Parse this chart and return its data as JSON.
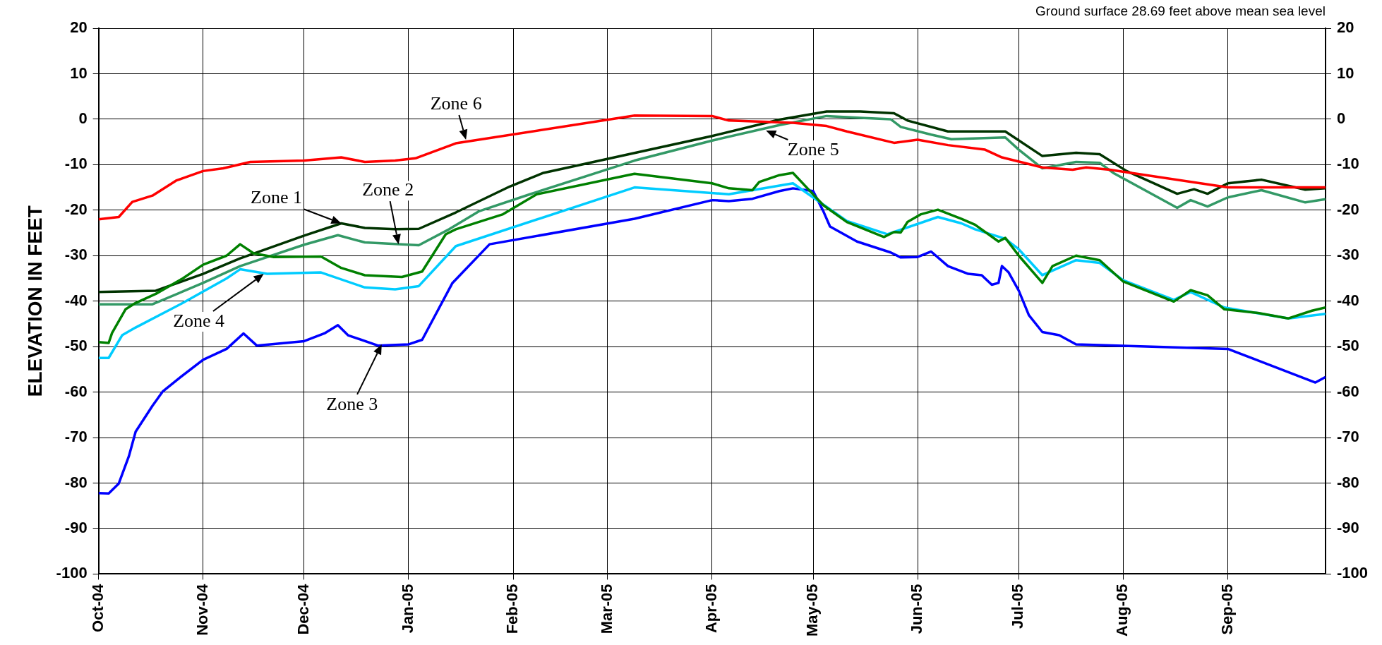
{
  "chart_data": {
    "type": "line",
    "ylabel": "ELEVATION IN FEET",
    "annotations": [
      "Ground surface 28.69 feet above mean sea level",
      {
        "text": "Zone 1",
        "x": "2004-12-12",
        "y": -22.9
      },
      {
        "text": "Zone 2",
        "x": "2004-12-29",
        "y": -27.5
      },
      {
        "text": "Zone 3",
        "x": "2004-12-24",
        "y": -49.5
      },
      {
        "text": "Zone 4",
        "x": "2004-11-19",
        "y": -34
      },
      {
        "text": "Zone 5",
        "x": "2005-04-17",
        "y": -2.5
      },
      {
        "text": "Zone 6",
        "x": "2005-01-18",
        "y": -4.5
      }
    ],
    "xlim": [
      "2004-10-01",
      "2005-09-30"
    ],
    "xticks": [
      {
        "value": "2004-10-01",
        "label": "Oct-04"
      },
      {
        "value": "2004-11-01",
        "label": "Nov-04"
      },
      {
        "value": "2004-12-01",
        "label": "Dec-04"
      },
      {
        "value": "2005-01-01",
        "label": "Jan-05"
      },
      {
        "value": "2005-02-01",
        "label": "Feb-05"
      },
      {
        "value": "2005-03-01",
        "label": "Mar-05"
      },
      {
        "value": "2005-04-01",
        "label": "Apr-05"
      },
      {
        "value": "2005-05-01",
        "label": "May-05"
      },
      {
        "value": "2005-06-01",
        "label": "Jun-05"
      },
      {
        "value": "2005-07-01",
        "label": "Jul-05"
      },
      {
        "value": "2005-08-01",
        "label": "Aug-05"
      },
      {
        "value": "2005-09-01",
        "label": "Sep-05"
      }
    ],
    "ylim": [
      -100,
      20
    ],
    "yticks": [
      -100,
      -90,
      -80,
      -70,
      -60,
      -50,
      -40,
      -30,
      -20,
      -10,
      0,
      10,
      20
    ],
    "y2lim": [
      -100,
      20
    ],
    "y2ticks": [
      -100,
      -90,
      -80,
      -70,
      -60,
      -50,
      -40,
      -30,
      -20,
      -10,
      0,
      10,
      20
    ],
    "grid": true,
    "legend": false,
    "series": [
      {
        "color": "#003300",
        "x": [
          "2004-10-01",
          "2004-10-18",
          "2004-11-01",
          "2004-11-12",
          "2004-12-01",
          "2004-12-12",
          "2004-12-19",
          "2004-12-28",
          "2005-01-04",
          "2005-01-15",
          "2005-01-31",
          "2005-02-10",
          "2005-04-01",
          "2005-04-21",
          "2005-05-05",
          "2005-05-15",
          "2005-05-25",
          "2005-05-29",
          "2005-06-10",
          "2005-06-27",
          "2005-07-08",
          "2005-07-18",
          "2005-07-25",
          "2005-08-02",
          "2005-08-17",
          "2005-08-22",
          "2005-08-26",
          "2005-09-01",
          "2005-09-11",
          "2005-09-24",
          "2005-09-30"
        ],
        "values": [
          -38,
          -37.7,
          -34,
          -30.6,
          -25.6,
          -22.9,
          -23.9,
          -24.2,
          -24.1,
          -20.5,
          -14.8,
          -11.8,
          -3.7,
          -0.1,
          1.7,
          1.7,
          1.3,
          -0.3,
          -2.7,
          -2.7,
          -8.1,
          -7.4,
          -7.7,
          -11.4,
          -16.4,
          -15.4,
          -16.4,
          -14.1,
          -13.3,
          -15.5,
          -15.2
        ]
      },
      {
        "color": "#339966",
        "x": [
          "2004-10-01",
          "2004-10-17",
          "2004-11-01",
          "2004-11-12",
          "2004-12-01",
          "2004-12-11",
          "2004-12-19",
          "2005-01-04",
          "2005-01-13",
          "2005-01-22",
          "2005-02-06",
          "2005-03-09",
          "2005-04-01",
          "2005-04-21",
          "2005-05-05",
          "2005-05-15",
          "2005-05-24",
          "2005-05-27",
          "2005-06-05",
          "2005-06-11",
          "2005-06-27",
          "2005-07-01",
          "2005-07-08",
          "2005-07-18",
          "2005-07-25",
          "2005-07-29",
          "2005-08-17",
          "2005-08-21",
          "2005-08-26",
          "2005-09-01",
          "2005-09-11",
          "2005-09-24",
          "2005-09-30"
        ],
        "values": [
          -40.7,
          -40.7,
          -36,
          -32.3,
          -27.6,
          -25.5,
          -27.1,
          -27.7,
          -24.2,
          -20.2,
          -16.5,
          -9.1,
          -4.7,
          -1.3,
          0.7,
          0.3,
          0,
          -1.7,
          -3.4,
          -4.4,
          -4,
          -6.7,
          -10.8,
          -9.4,
          -9.6,
          -11.8,
          -19.5,
          -17.8,
          -19.2,
          -17.2,
          -15.6,
          -18.3,
          -17.6
        ]
      },
      {
        "color": "#0000ff",
        "x": [
          "2004-10-01",
          "2004-10-04",
          "2004-10-07",
          "2004-10-10",
          "2004-10-12",
          "2004-10-17",
          "2004-10-20",
          "2004-10-25",
          "2004-11-01",
          "2004-11-08",
          "2004-11-13",
          "2004-11-17",
          "2004-12-01",
          "2004-12-07",
          "2004-12-11",
          "2004-12-14",
          "2004-12-23",
          "2005-01-01",
          "2005-01-05",
          "2005-01-14",
          "2005-01-25",
          "2005-03-09",
          "2005-04-01",
          "2005-04-06",
          "2005-04-13",
          "2005-04-21",
          "2005-04-25",
          "2005-05-01",
          "2005-05-04",
          "2005-05-06",
          "2005-05-14",
          "2005-05-24",
          "2005-05-27",
          "2005-06-01",
          "2005-06-05",
          "2005-06-10",
          "2005-06-16",
          "2005-06-20",
          "2005-06-23",
          "2005-06-25",
          "2005-06-26",
          "2005-06-28",
          "2005-07-01",
          "2005-07-04",
          "2005-07-08",
          "2005-07-13",
          "2005-07-18",
          "2005-09-01",
          "2005-09-27",
          "2005-09-30"
        ],
        "values": [
          -82.2,
          -82.3,
          -80.1,
          -74.1,
          -68.7,
          -63,
          -59.9,
          -56.9,
          -52.9,
          -50.5,
          -47.1,
          -49.8,
          -48.8,
          -47.1,
          -45.3,
          -47.5,
          -49.8,
          -49.5,
          -48.5,
          -36,
          -27.5,
          -21.9,
          -17.8,
          -18,
          -17.5,
          -15.8,
          -15.2,
          -15.8,
          -20.2,
          -23.6,
          -26.9,
          -29.3,
          -30.4,
          -30.3,
          -29.1,
          -32.3,
          -34,
          -34.3,
          -36.4,
          -36,
          -32.3,
          -33.7,
          -37.7,
          -43.1,
          -46.8,
          -47.5,
          -49.5,
          -50.5,
          -57.9,
          -56.7
        ]
      },
      {
        "color": "#00ccff",
        "x": [
          "2004-10-01",
          "2004-10-04",
          "2004-10-08",
          "2004-10-12",
          "2004-10-26",
          "2004-11-08",
          "2004-11-12",
          "2004-11-20",
          "2004-12-06",
          "2004-12-19",
          "2004-12-28",
          "2005-01-04",
          "2005-01-15",
          "2005-03-09",
          "2005-04-06",
          "2005-04-25",
          "2005-05-11",
          "2005-05-23",
          "2005-06-07",
          "2005-06-14",
          "2005-06-18",
          "2005-06-27",
          "2005-07-01",
          "2005-07-08",
          "2005-07-18",
          "2005-07-25",
          "2005-08-01",
          "2005-08-16",
          "2005-08-21",
          "2005-08-31",
          "2005-09-19",
          "2005-09-30"
        ],
        "values": [
          -52.5,
          -52.5,
          -47.5,
          -45.8,
          -40.4,
          -35,
          -33,
          -34,
          -33.7,
          -37,
          -37.4,
          -36.7,
          -27.9,
          -15,
          -16.5,
          -14.1,
          -22.4,
          -25.3,
          -21.5,
          -22.9,
          -24.2,
          -26.3,
          -28.6,
          -34.3,
          -31,
          -31.6,
          -35.4,
          -39.7,
          -38,
          -41.4,
          -43.8,
          -42.8
        ]
      },
      {
        "color": "#008000",
        "x": [
          "2004-10-01",
          "2004-10-04",
          "2004-10-05",
          "2004-10-09",
          "2004-10-12",
          "2004-10-18",
          "2004-10-26",
          "2004-11-01",
          "2004-11-08",
          "2004-11-12",
          "2004-11-16",
          "2004-11-22",
          "2004-12-06",
          "2004-12-12",
          "2004-12-19",
          "2004-12-30",
          "2005-01-05",
          "2005-01-12",
          "2005-01-15",
          "2005-01-29",
          "2005-02-08",
          "2005-03-09",
          "2005-04-01",
          "2005-04-06",
          "2005-04-13",
          "2005-04-15",
          "2005-04-21",
          "2005-04-25",
          "2005-05-04",
          "2005-05-11",
          "2005-05-22",
          "2005-05-25",
          "2005-05-27",
          "2005-05-29",
          "2005-06-02",
          "2005-06-07",
          "2005-06-14",
          "2005-06-18",
          "2005-06-25",
          "2005-06-27",
          "2005-07-01",
          "2005-07-08",
          "2005-07-11",
          "2005-07-18",
          "2005-07-25",
          "2005-08-01",
          "2005-08-16",
          "2005-08-21",
          "2005-08-26",
          "2005-08-31",
          "2005-09-10",
          "2005-09-19",
          "2005-09-26",
          "2005-09-30"
        ],
        "values": [
          -49,
          -49.2,
          -47,
          -41.8,
          -40.4,
          -38.4,
          -35,
          -32,
          -30,
          -27.5,
          -29.5,
          -30.3,
          -30.2,
          -32.7,
          -34.3,
          -34.7,
          -33.5,
          -25.3,
          -24.2,
          -20.9,
          -16.5,
          -12,
          -14.1,
          -15.2,
          -15.6,
          -13.8,
          -12.3,
          -11.8,
          -18.9,
          -22.6,
          -25.9,
          -24.8,
          -24.9,
          -22.6,
          -20.9,
          -19.9,
          -21.9,
          -23.2,
          -26.9,
          -26.1,
          -30,
          -36,
          -32.3,
          -30,
          -31,
          -35.7,
          -40.1,
          -37.6,
          -38.7,
          -41.8,
          -42.6,
          -43.8,
          -42.1,
          -41.4
        ]
      },
      {
        "color": "#ff0000",
        "x": [
          "2004-10-01",
          "2004-10-07",
          "2004-10-11",
          "2004-10-17",
          "2004-10-24",
          "2004-11-01",
          "2004-11-07",
          "2004-11-15",
          "2004-12-01",
          "2004-12-12",
          "2004-12-19",
          "2004-12-28",
          "2005-01-03",
          "2005-01-15",
          "2005-03-09",
          "2005-04-01",
          "2005-04-06",
          "2005-04-25",
          "2005-05-05",
          "2005-05-11",
          "2005-05-25",
          "2005-06-01",
          "2005-06-10",
          "2005-06-21",
          "2005-06-26",
          "2005-07-08",
          "2005-07-17",
          "2005-07-21",
          "2005-07-28",
          "2005-09-01",
          "2005-09-30"
        ],
        "values": [
          -22,
          -21.5,
          -18.2,
          -16.8,
          -13.5,
          -11.4,
          -10.8,
          -9.4,
          -9.1,
          -8.4,
          -9.4,
          -9.1,
          -8.6,
          -5.3,
          0.8,
          0.7,
          -0.3,
          -0.8,
          -1.5,
          -2.7,
          -5.2,
          -4.5,
          -5.7,
          -6.7,
          -8.4,
          -10.6,
          -11.1,
          -10.6,
          -11.1,
          -15,
          -15
        ]
      }
    ]
  }
}
